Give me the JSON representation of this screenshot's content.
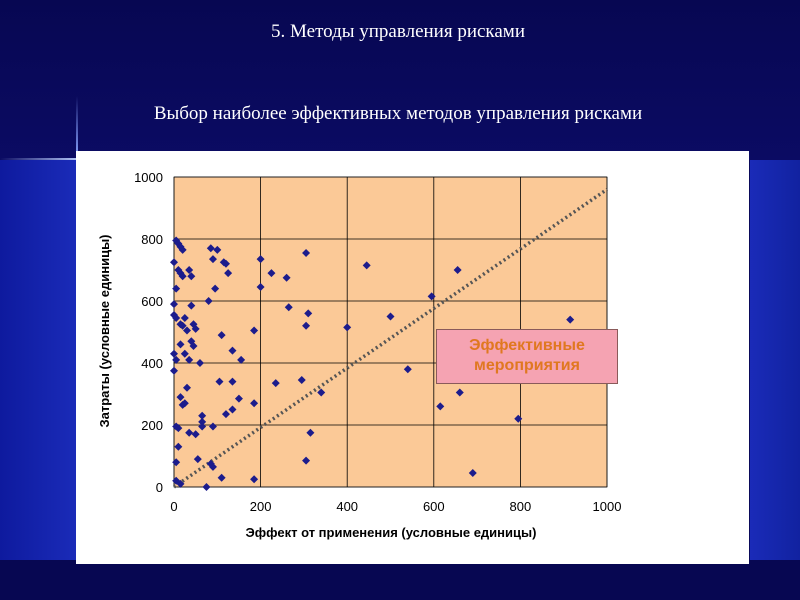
{
  "slide": {
    "title": "5. Методы управления рисками",
    "subtitle": "Выбор наиболее эффективных методов управления рисками"
  },
  "colors": {
    "background": "#0a0a5a",
    "plot_area": "#fbc997",
    "marker": "#1c1c8c",
    "diagonal": "#555555",
    "callout_fill": "#f5a3b2",
    "callout_text": "#e07820"
  },
  "chart_data": {
    "type": "scatter",
    "xlabel": "Эффект от применения (условные единицы)",
    "ylabel": "Затраты (условные единицы)",
    "xlim": [
      0,
      1000
    ],
    "ylim": [
      0,
      1000
    ],
    "xticks": [
      0,
      200,
      400,
      600,
      800,
      1000
    ],
    "yticks": [
      0,
      200,
      400,
      600,
      800,
      1000
    ],
    "grid": "horizontal and vertical major gridlines",
    "reference_line": {
      "style": "dotted",
      "from": [
        0,
        0
      ],
      "to": [
        1000,
        960
      ]
    },
    "annotation": "Эффективные мероприятия",
    "points": [
      [
        5,
        795
      ],
      [
        10,
        785
      ],
      [
        15,
        775
      ],
      [
        20,
        765
      ],
      [
        0,
        725
      ],
      [
        10,
        700
      ],
      [
        15,
        690
      ],
      [
        20,
        680
      ],
      [
        35,
        700
      ],
      [
        40,
        680
      ],
      [
        5,
        640
      ],
      [
        0,
        590
      ],
      [
        0,
        555
      ],
      [
        5,
        545
      ],
      [
        15,
        525
      ],
      [
        20,
        520
      ],
      [
        25,
        545
      ],
      [
        30,
        505
      ],
      [
        40,
        585
      ],
      [
        45,
        525
      ],
      [
        50,
        510
      ],
      [
        40,
        470
      ],
      [
        45,
        455
      ],
      [
        15,
        460
      ],
      [
        0,
        430
      ],
      [
        5,
        410
      ],
      [
        0,
        375
      ],
      [
        25,
        430
      ],
      [
        35,
        410
      ],
      [
        60,
        400
      ],
      [
        30,
        320
      ],
      [
        15,
        290
      ],
      [
        20,
        265
      ],
      [
        25,
        270
      ],
      [
        65,
        230
      ],
      [
        5,
        195
      ],
      [
        10,
        190
      ],
      [
        35,
        175
      ],
      [
        50,
        170
      ],
      [
        65,
        210
      ],
      [
        65,
        195
      ],
      [
        55,
        90
      ],
      [
        10,
        130
      ],
      [
        5,
        80
      ],
      [
        5,
        20
      ],
      [
        15,
        10
      ],
      [
        75,
        0
      ],
      [
        85,
        75
      ],
      [
        90,
        65
      ],
      [
        90,
        195
      ],
      [
        85,
        770
      ],
      [
        100,
        765
      ],
      [
        90,
        735
      ],
      [
        115,
        725
      ],
      [
        120,
        720
      ],
      [
        125,
        690
      ],
      [
        95,
        640
      ],
      [
        80,
        600
      ],
      [
        200,
        735
      ],
      [
        225,
        690
      ],
      [
        260,
        675
      ],
      [
        305,
        755
      ],
      [
        265,
        580
      ],
      [
        310,
        560
      ],
      [
        305,
        520
      ],
      [
        185,
        505
      ],
      [
        110,
        490
      ],
      [
        135,
        440
      ],
      [
        155,
        410
      ],
      [
        105,
        340
      ],
      [
        135,
        340
      ],
      [
        150,
        285
      ],
      [
        185,
        270
      ],
      [
        120,
        235
      ],
      [
        135,
        250
      ],
      [
        110,
        30
      ],
      [
        185,
        25
      ],
      [
        200,
        645
      ],
      [
        235,
        335
      ],
      [
        295,
        345
      ],
      [
        340,
        305
      ],
      [
        315,
        175
      ],
      [
        305,
        85
      ],
      [
        400,
        515
      ],
      [
        445,
        715
      ],
      [
        500,
        550
      ],
      [
        540,
        380
      ],
      [
        595,
        615
      ],
      [
        655,
        700
      ],
      [
        660,
        305
      ],
      [
        615,
        260
      ],
      [
        795,
        220
      ],
      [
        915,
        540
      ],
      [
        690,
        45
      ]
    ]
  }
}
